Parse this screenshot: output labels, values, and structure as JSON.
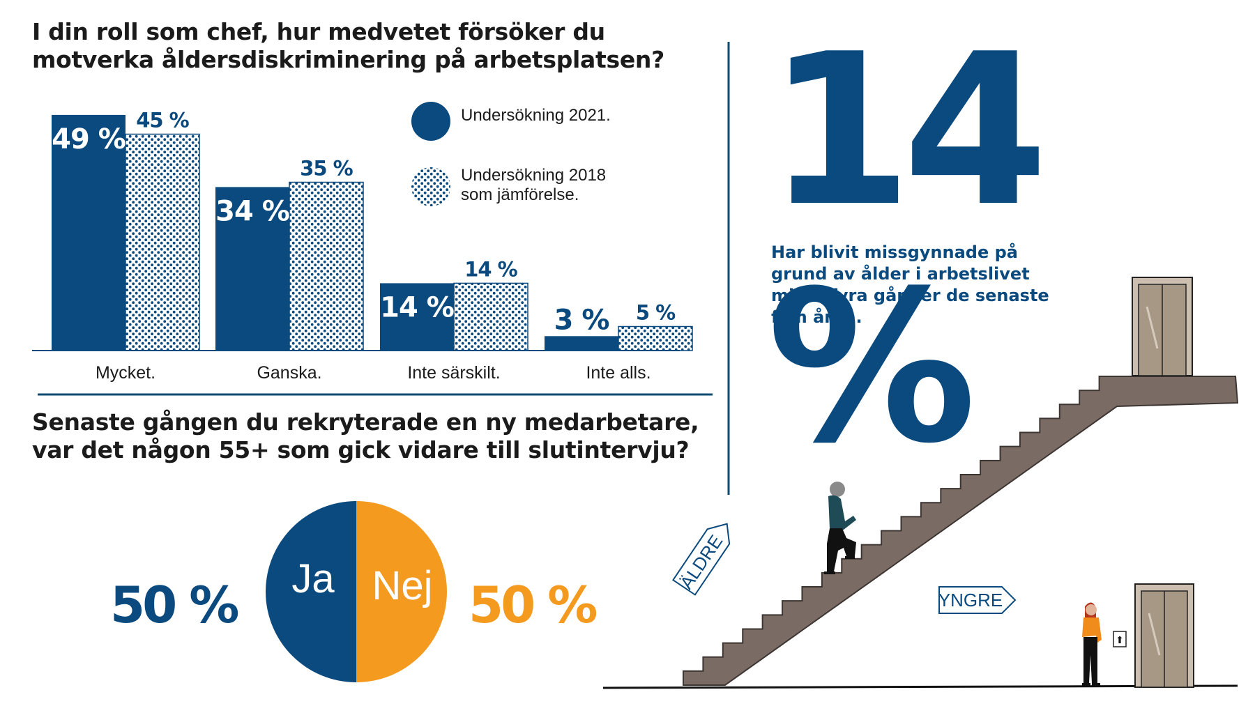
{
  "colors": {
    "navy": "#0b4a7e",
    "orange": "#f39a1f",
    "rule": "#0e4d6f",
    "stair": "#7a6c65",
    "text": "#1b1b1b"
  },
  "question1": {
    "title_lines": [
      "I din roll som chef, hur medvetet försöker du",
      "motverka åldersdiskriminering på arbetsplatsen?"
    ]
  },
  "legend": {
    "item_2021": "Undersökning 2021.",
    "item_2018_lines": [
      "Undersökning 2018",
      "som jämförelse."
    ]
  },
  "chart_data": [
    {
      "type": "bar",
      "title": "I din roll som chef, hur medvetet försöker du motverka åldersdiskriminering på arbetsplatsen?",
      "categories": [
        "Mycket.",
        "Ganska.",
        "Inte särskilt.",
        "Inte alls."
      ],
      "series": [
        {
          "name": "Undersökning 2021.",
          "values": [
            49,
            34,
            14,
            3
          ],
          "labels": [
            "49 %",
            "34 %",
            "14 %",
            "3 %"
          ],
          "pattern": "solid"
        },
        {
          "name": "Undersökning 2018 som jämförelse.",
          "values": [
            45,
            35,
            14,
            5
          ],
          "labels": [
            "45 %",
            "35 %",
            "14 %",
            "5 %"
          ],
          "pattern": "dotted"
        }
      ],
      "ylim": [
        0,
        50
      ],
      "grid": false,
      "legend": "top-right",
      "xlabel": "",
      "ylabel": ""
    },
    {
      "type": "pie",
      "title": "Senaste gången du rekryterade en ny medarbetare, var det någon 55+ som gick vidare till slutintervju?",
      "slices": [
        {
          "label": "Ja",
          "value": 50,
          "value_label": "50 %",
          "color": "#0b4a7e"
        },
        {
          "label": "Nej",
          "value": 50,
          "value_label": "50 %",
          "color": "#f39a1f"
        }
      ]
    }
  ],
  "question2": {
    "title_lines": [
      "Senaste gången du rekryterade en ny medarbetare,",
      "var det någon 55+ som gick vidare till slutintervju?"
    ]
  },
  "highlight": {
    "value": "14 %",
    "description_lines": [
      "Har blivit missgynnade på",
      "grund av ålder i arbetslivet",
      "minst fyra gånger de senaste",
      "fem åren."
    ]
  },
  "illustration": {
    "sign_older": "ÄLDRE",
    "sign_younger": "YNGRE",
    "elevator_button_glyph": "⬆"
  }
}
